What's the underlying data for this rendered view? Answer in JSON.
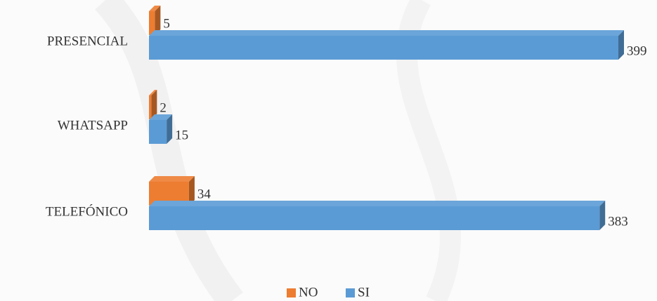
{
  "chart_data": {
    "type": "bar",
    "orientation": "horizontal",
    "three_d": true,
    "categories": [
      "PRESENCIAL",
      "WHATSAPP",
      "TELEFÓNICO"
    ],
    "series": [
      {
        "name": "NO",
        "color": "#ed7d31",
        "values": [
          5,
          2,
          34
        ]
      },
      {
        "name": "SI",
        "color": "#5b9bd5",
        "values": [
          399,
          15,
          383
        ]
      }
    ],
    "legend": "bottom"
  }
}
